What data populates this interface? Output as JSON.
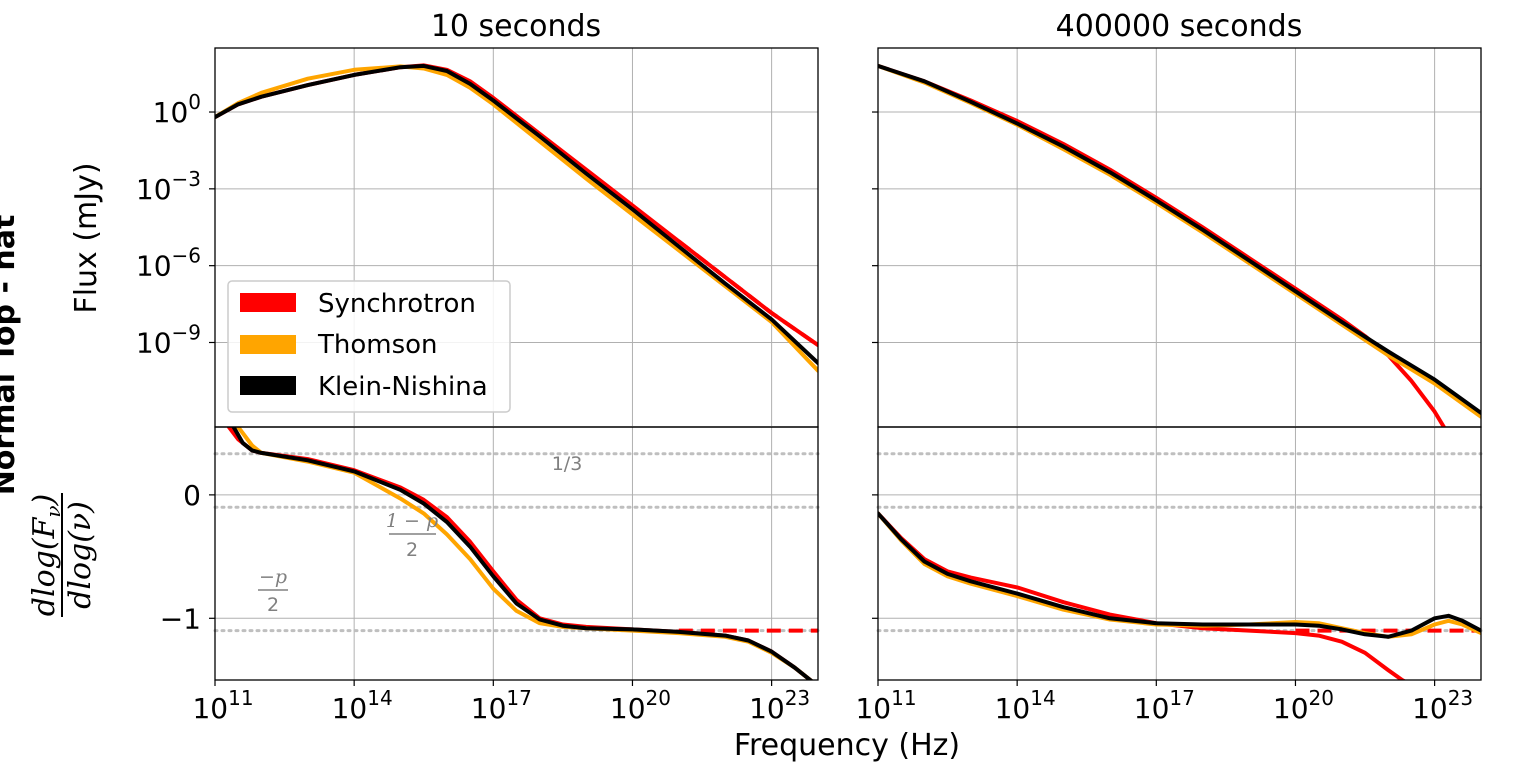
{
  "figure": {
    "xlabel": "Frequency (Hz)",
    "clipped_label": "Normal Top - hat"
  },
  "colors": {
    "synchrotron": "#ff0000",
    "thomson": "#ffa500",
    "klein_nishina": "#000000",
    "reference": "#bfbfbf",
    "grid": "#b0b0b0",
    "annotation": "#808080"
  },
  "legend": {
    "entries": [
      "Synchrotron",
      "Thomson",
      "Klein-Nishina"
    ],
    "placement": "lower-left of top-left panel"
  },
  "annotations": {
    "one_third": "1/3",
    "one_minus_p_num": "1 − p",
    "one_minus_p_den": "2",
    "minus_p_num": "−p",
    "minus_p_den": "2"
  },
  "ylabels": {
    "flux": "Flux (mJy)",
    "slope_num": "dlog(F",
    "slope_num_sub": "ν",
    "slope_num_close": ")",
    "slope_den": "dlog(ν)"
  },
  "ticks": {
    "x": [
      "10^11",
      "10^14",
      "10^17",
      "10^20",
      "10^23"
    ],
    "flux_y": [
      "10^0",
      "10^-3",
      "10^-6",
      "10^-9"
    ],
    "slope_y": [
      "0",
      "−1"
    ]
  },
  "chart_data": [
    {
      "type": "line",
      "panel": "flux",
      "title": "10 seconds",
      "xscale": "log10",
      "yscale": "log10",
      "xlim": [
        11,
        24
      ],
      "ylim": [
        -12.3,
        2.5
      ],
      "xlabel": "",
      "ylabel": "Flux (mJy)",
      "grid": true,
      "series": [
        {
          "name": "Synchrotron",
          "style": "solid",
          "x": [
            11,
            11.5,
            12,
            13,
            14,
            15,
            15.5,
            16,
            16.5,
            17,
            18,
            19,
            20,
            21,
            22,
            23,
            24
          ],
          "y": [
            -0.2,
            0.3,
            0.6,
            1.05,
            1.45,
            1.75,
            1.82,
            1.65,
            1.2,
            0.55,
            -0.85,
            -2.25,
            -3.65,
            -5.05,
            -6.45,
            -7.85,
            -9.1
          ]
        },
        {
          "name": "Synchrotron (extrapolation)",
          "style": "dashed",
          "x": [
            21,
            22,
            23,
            24
          ],
          "y": [
            -5.05,
            -6.45,
            -7.85,
            -9.1
          ]
        },
        {
          "name": "Thomson",
          "style": "solid",
          "x": [
            11,
            11.5,
            12,
            13,
            14,
            15,
            15.5,
            16,
            16.5,
            17,
            18,
            19,
            20,
            21,
            22,
            23,
            24
          ],
          "y": [
            -0.2,
            0.35,
            0.75,
            1.3,
            1.65,
            1.78,
            1.7,
            1.45,
            0.95,
            0.3,
            -1.15,
            -2.6,
            -4.0,
            -5.4,
            -6.8,
            -8.2,
            -10.1
          ]
        },
        {
          "name": "Klein-Nishina",
          "style": "solid",
          "x": [
            11,
            11.5,
            12,
            13,
            14,
            15,
            15.5,
            16,
            16.5,
            17,
            18,
            19,
            20,
            21,
            22,
            23,
            24
          ],
          "y": [
            -0.2,
            0.3,
            0.6,
            1.05,
            1.45,
            1.75,
            1.8,
            1.6,
            1.1,
            0.45,
            -0.95,
            -2.4,
            -3.8,
            -5.25,
            -6.7,
            -8.1,
            -9.8
          ]
        }
      ]
    },
    {
      "type": "line",
      "panel": "flux",
      "title": "400000 seconds",
      "xscale": "log10",
      "yscale": "log10",
      "xlim": [
        11,
        24
      ],
      "ylim": [
        -12.3,
        2.5
      ],
      "grid": true,
      "series": [
        {
          "name": "Synchrotron",
          "style": "solid",
          "x": [
            11,
            12,
            13,
            14,
            15,
            16,
            17,
            18,
            19,
            20,
            21,
            21.5,
            22,
            22.5,
            23,
            23.2
          ],
          "y": [
            1.8,
            1.2,
            0.45,
            -0.35,
            -1.25,
            -2.25,
            -3.35,
            -4.5,
            -5.7,
            -6.9,
            -8.1,
            -8.75,
            -9.5,
            -10.5,
            -11.7,
            -12.3
          ]
        },
        {
          "name": "Thomson",
          "style": "solid",
          "x": [
            11,
            12,
            13,
            14,
            15,
            16,
            17,
            18,
            19,
            20,
            21,
            22,
            23,
            24
          ],
          "y": [
            1.8,
            1.15,
            0.35,
            -0.5,
            -1.45,
            -2.45,
            -3.55,
            -4.7,
            -5.9,
            -7.1,
            -8.3,
            -9.5,
            -10.6,
            -11.9
          ]
        },
        {
          "name": "Klein-Nishina",
          "style": "solid",
          "x": [
            11,
            12,
            13,
            14,
            15,
            16,
            17,
            18,
            19,
            20,
            21,
            22,
            23,
            24
          ],
          "y": [
            1.8,
            1.2,
            0.4,
            -0.45,
            -1.35,
            -2.35,
            -3.45,
            -4.6,
            -5.8,
            -7.0,
            -8.2,
            -9.35,
            -10.45,
            -11.75
          ]
        }
      ]
    },
    {
      "type": "line",
      "panel": "slope",
      "title": "",
      "xscale": "log10",
      "xlim": [
        11,
        24
      ],
      "ylim": [
        -1.5,
        0.55
      ],
      "ylabel": "dlog(Fν)/dlog(ν)",
      "grid": true,
      "reference_lines": [
        {
          "label": "1/3",
          "y": 0.333
        },
        {
          "label": "(1 − p)/2",
          "y": -0.1
        },
        {
          "label": "−p/2",
          "y": -1.1
        }
      ],
      "series": [
        {
          "name": "Synchrotron",
          "style": "solid",
          "x": [
            11.3,
            11.5,
            11.8,
            12,
            13,
            14,
            15,
            15.5,
            16,
            16.5,
            17,
            17.5,
            18,
            18.5,
            19,
            20,
            21,
            22,
            22.5,
            23,
            23.5,
            24
          ],
          "y": [
            0.55,
            0.45,
            0.36,
            0.34,
            0.29,
            0.2,
            0.06,
            -0.04,
            -0.18,
            -0.38,
            -0.62,
            -0.85,
            -1.0,
            -1.05,
            -1.07,
            -1.09,
            -1.11,
            -1.14,
            -1.18,
            -1.27,
            -1.4,
            -1.55
          ]
        },
        {
          "name": "Synchrotron (extrapolation)",
          "style": "dashed",
          "x": [
            21,
            24
          ],
          "y": [
            -1.1,
            -1.1
          ]
        },
        {
          "name": "Thomson",
          "style": "solid",
          "x": [
            11.5,
            11.8,
            12,
            13,
            14,
            15,
            15.5,
            16,
            16.5,
            17,
            17.5,
            18,
            18.5,
            19,
            20,
            21,
            22,
            22.5,
            23,
            23.5,
            24
          ],
          "y": [
            0.55,
            0.4,
            0.34,
            0.27,
            0.18,
            -0.03,
            -0.15,
            -0.32,
            -0.52,
            -0.76,
            -0.94,
            -1.04,
            -1.07,
            -1.08,
            -1.1,
            -1.12,
            -1.15,
            -1.19,
            -1.28,
            -1.4,
            -1.55
          ]
        },
        {
          "name": "Klein-Nishina",
          "style": "solid",
          "x": [
            11.4,
            11.6,
            11.8,
            12,
            13,
            14,
            15,
            15.5,
            16,
            16.5,
            17,
            17.5,
            18,
            18.5,
            19,
            20,
            21,
            22,
            22.5,
            23,
            23.5,
            24
          ],
          "y": [
            0.55,
            0.42,
            0.36,
            0.34,
            0.28,
            0.19,
            0.04,
            -0.07,
            -0.22,
            -0.42,
            -0.66,
            -0.88,
            -1.01,
            -1.06,
            -1.08,
            -1.09,
            -1.11,
            -1.14,
            -1.18,
            -1.27,
            -1.4,
            -1.55
          ]
        }
      ]
    },
    {
      "type": "line",
      "panel": "slope",
      "title": "",
      "xscale": "log10",
      "xlim": [
        11,
        24
      ],
      "ylim": [
        -1.5,
        0.55
      ],
      "grid": true,
      "reference_lines": [
        {
          "label": "1/3",
          "y": 0.333
        },
        {
          "label": "(1 − p)/2",
          "y": -0.1
        },
        {
          "label": "−p/2",
          "y": -1.1
        }
      ],
      "series": [
        {
          "name": "Synchrotron",
          "style": "solid",
          "x": [
            11,
            11.5,
            12,
            12.5,
            13,
            14,
            15,
            16,
            17,
            18,
            19,
            20,
            20.5,
            21,
            21.5,
            22,
            22.3,
            22.6
          ],
          "y": [
            -0.15,
            -0.35,
            -0.52,
            -0.62,
            -0.67,
            -0.75,
            -0.87,
            -0.97,
            -1.04,
            -1.08,
            -1.1,
            -1.12,
            -1.14,
            -1.19,
            -1.28,
            -1.42,
            -1.5,
            -1.56
          ]
        },
        {
          "name": "Synchrotron (extrapolation)",
          "style": "dashed",
          "x": [
            20,
            24
          ],
          "y": [
            -1.1,
            -1.1
          ]
        },
        {
          "name": "Thomson",
          "style": "solid",
          "x": [
            11,
            11.5,
            12,
            12.5,
            13,
            14,
            15,
            16,
            17,
            18,
            19,
            20,
            20.5,
            21,
            21.5,
            22,
            22.5,
            23,
            23.3,
            23.6,
            24
          ],
          "y": [
            -0.15,
            -0.37,
            -0.56,
            -0.66,
            -0.72,
            -0.82,
            -0.93,
            -1.01,
            -1.05,
            -1.06,
            -1.05,
            -1.03,
            -1.04,
            -1.08,
            -1.12,
            -1.15,
            -1.13,
            -1.05,
            -1.02,
            -1.05,
            -1.12
          ]
        },
        {
          "name": "Klein-Nishina",
          "style": "solid",
          "x": [
            11,
            11.5,
            12,
            12.5,
            13,
            14,
            15,
            16,
            17,
            18,
            19,
            20,
            20.5,
            21,
            21.5,
            22,
            22.5,
            23,
            23.3,
            23.6,
            24
          ],
          "y": [
            -0.15,
            -0.36,
            -0.54,
            -0.64,
            -0.7,
            -0.8,
            -0.91,
            -1.0,
            -1.04,
            -1.05,
            -1.05,
            -1.05,
            -1.06,
            -1.09,
            -1.13,
            -1.15,
            -1.1,
            -1.0,
            -0.98,
            -1.02,
            -1.1
          ]
        }
      ]
    }
  ]
}
